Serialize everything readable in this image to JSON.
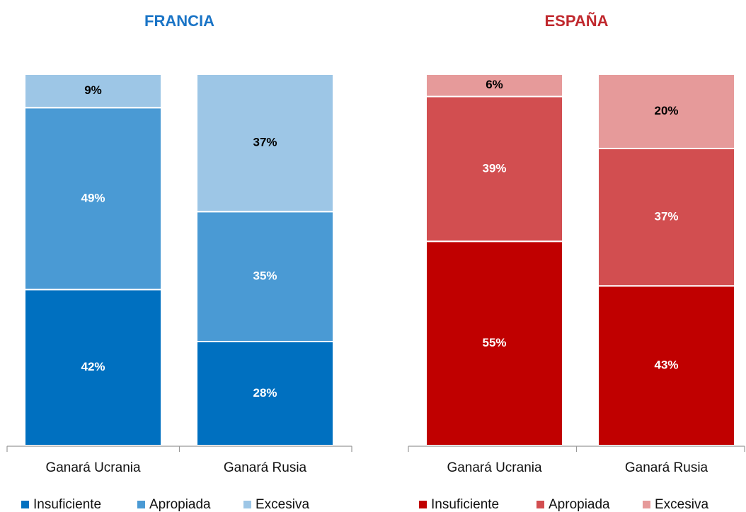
{
  "chart_data": [
    {
      "type": "stacked_bar",
      "title": "FRANCIA",
      "title_color": "#1a74c6",
      "categories": [
        "Ganará Ucrania",
        "Ganará Rusia"
      ],
      "series": [
        {
          "name": "Insuficiente",
          "color": "#0070c0",
          "values": [
            42,
            28
          ],
          "value_labels": [
            "42%",
            "28%"
          ]
        },
        {
          "name": "Apropiada",
          "color": "#4a9ad4",
          "values": [
            49,
            35
          ],
          "value_labels": [
            "49%",
            "35%"
          ]
        },
        {
          "name": "Excesiva",
          "color": "#9dc6e6",
          "values": [
            9,
            37
          ],
          "value_labels": [
            "9%",
            "37%"
          ]
        }
      ]
    },
    {
      "type": "stacked_bar",
      "title": "ESPAÑA",
      "title_color": "#c0282d",
      "categories": [
        "Ganará Ucrania",
        "Ganará Rusia"
      ],
      "series": [
        {
          "name": "Insuficiente",
          "color": "#c00000",
          "values": [
            55,
            43
          ],
          "value_labels": [
            "55%",
            "43%"
          ]
        },
        {
          "name": "Apropiada",
          "color": "#d24e50",
          "values": [
            39,
            37
          ],
          "value_labels": [
            "39%",
            "37%"
          ]
        },
        {
          "name": "Excesiva",
          "color": "#e69a9a",
          "values": [
            6,
            20
          ],
          "value_labels": [
            "6%",
            "20%"
          ]
        }
      ]
    }
  ]
}
